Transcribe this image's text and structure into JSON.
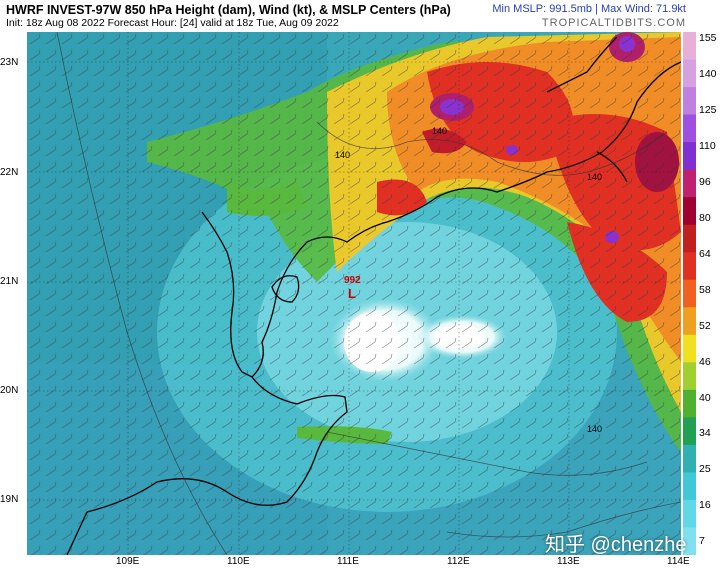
{
  "header": {
    "title": "HWRF INVEST-97W 850 hPa Height (dam), Wind (kt), & MSLP Centers (hPa)",
    "subtitle": "Init: 18z Aug 08 2022   Forecast Hour: [24]   valid at 18z Tue, Aug 09 2022",
    "min_max": "Min MSLP: 991.5mb | Max Wind: 71.9kt",
    "brand": "TROPICALTIDBITS.COM"
  },
  "map": {
    "lat_labels": [
      "23N",
      "22N",
      "21N",
      "20N",
      "19N"
    ],
    "lon_labels": [
      "109E",
      "110E",
      "111E",
      "112E",
      "113E",
      "114E"
    ],
    "low_center": {
      "pressure": "992",
      "symbol": "L"
    },
    "height_contour_labels": [
      "140",
      "140",
      "140",
      "140"
    ]
  },
  "colorbar": {
    "labels": [
      "155",
      "140",
      "125",
      "110",
      "96",
      "80",
      "64",
      "58",
      "52",
      "46",
      "40",
      "34",
      "25",
      "16",
      "7"
    ],
    "colors": [
      "#e8b0d8",
      "#d7a0e0",
      "#c080e0",
      "#a050e0",
      "#8030d0",
      "#c02070",
      "#a00030",
      "#c02020",
      "#e03020",
      "#f06020",
      "#f0a020",
      "#f0e020",
      "#a0d030",
      "#50b030",
      "#20a050",
      "#30b0b0",
      "#40c8d8",
      "#60d8e8",
      "#80e0f0"
    ],
    "accent": "#cc0000"
  },
  "watermark": "知乎 @chenzhe"
}
